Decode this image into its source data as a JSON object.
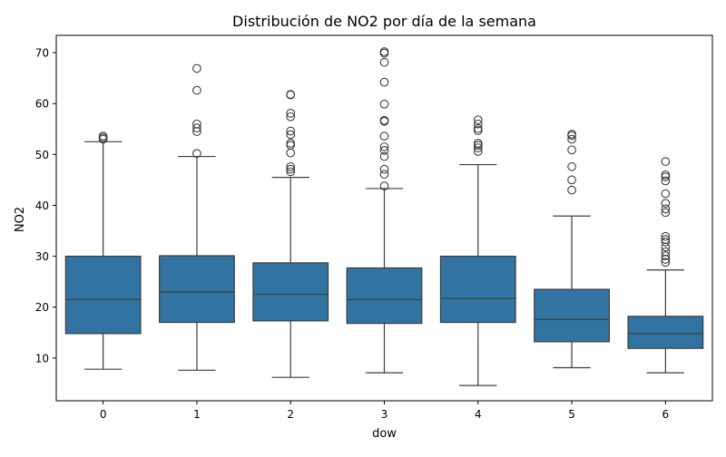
{
  "chart_data": {
    "type": "box",
    "title": "Distribución de NO2 por día de la semana",
    "xlabel": "dow",
    "ylabel": "NO2",
    "categories": [
      "0",
      "1",
      "2",
      "3",
      "4",
      "5",
      "6"
    ],
    "ylim": [
      1.6,
      73.4
    ],
    "yticks": [
      10,
      20,
      30,
      40,
      50,
      60,
      70
    ],
    "grid": false,
    "box_color": "#3274a1",
    "line_color": "#3d3d3d",
    "boxes": [
      {
        "category": "0",
        "whisker_low": 7.8,
        "q1": 14.8,
        "median": 21.5,
        "q3": 30.0,
        "whisker_high": 52.5,
        "outliers": [
          53.0,
          53.3,
          53.6
        ]
      },
      {
        "category": "1",
        "whisker_low": 7.6,
        "q1": 17.0,
        "median": 23.0,
        "q3": 30.1,
        "whisker_high": 49.6,
        "outliers": [
          50.2,
          54.5,
          55.2,
          56.0,
          62.6,
          66.9
        ]
      },
      {
        "category": "2",
        "whisker_low": 6.2,
        "q1": 17.3,
        "median": 22.5,
        "q3": 28.7,
        "whisker_high": 45.5,
        "outliers": [
          46.6,
          47.1,
          47.6,
          50.3,
          51.8,
          52.2,
          53.9,
          54.6,
          57.4,
          58.1,
          61.7,
          61.8
        ]
      },
      {
        "category": "3",
        "whisker_low": 7.1,
        "q1": 16.8,
        "median": 21.5,
        "q3": 27.7,
        "whisker_high": 43.3,
        "outliers": [
          43.8,
          46.1,
          47.1,
          49.6,
          50.8,
          51.5,
          53.6,
          56.5,
          56.7,
          59.9,
          64.2,
          68.1,
          69.9,
          70.2
        ]
      },
      {
        "category": "4",
        "whisker_low": 4.6,
        "q1": 17.0,
        "median": 21.7,
        "q3": 30.0,
        "whisker_high": 48.0,
        "outliers": [
          50.6,
          51.3,
          51.8,
          52.2,
          54.7,
          55.1,
          56.0,
          56.8
        ]
      },
      {
        "category": "5",
        "whisker_low": 8.1,
        "q1": 13.2,
        "median": 17.6,
        "q3": 23.5,
        "whisker_high": 37.9,
        "outliers": [
          43.0,
          45.0,
          47.6,
          50.9,
          53.0,
          53.7,
          54.0
        ]
      },
      {
        "category": "6",
        "whisker_low": 7.1,
        "q1": 11.9,
        "median": 14.8,
        "q3": 18.2,
        "whisker_high": 27.3,
        "outliers": [
          28.8,
          29.4,
          30.1,
          30.9,
          31.8,
          32.8,
          33.3,
          33.9,
          38.6,
          39.3,
          40.4,
          42.3,
          44.8,
          45.6,
          46.0,
          48.6
        ]
      }
    ]
  }
}
